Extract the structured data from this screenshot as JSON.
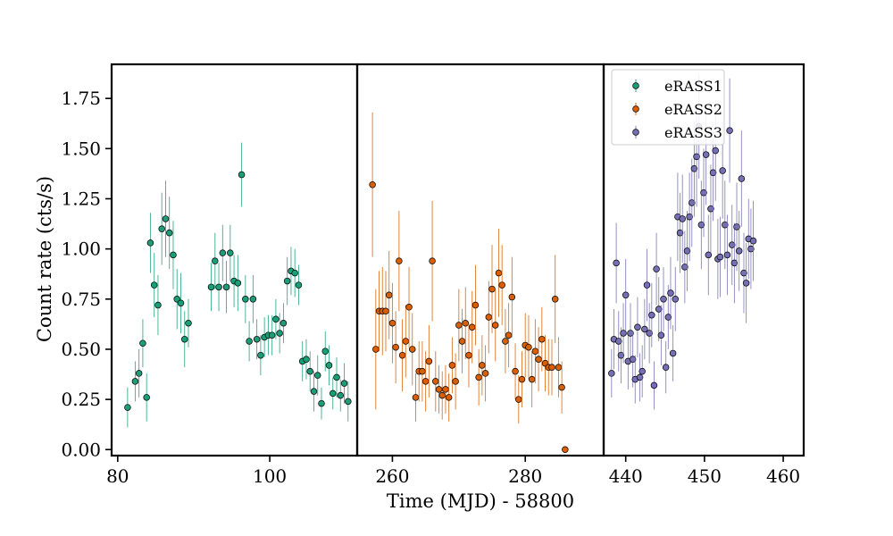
{
  "chart_data": {
    "type": "scatter",
    "xlabel": "Time (MJD) - 58800",
    "ylabel": "Count rate (cts/s)",
    "ylim": [
      -0.03,
      1.92
    ],
    "yticks": [
      0.0,
      0.25,
      0.5,
      0.75,
      1.0,
      1.25,
      1.5,
      1.75
    ],
    "ytick_labels": [
      "0.00",
      "0.25",
      "0.50",
      "0.75",
      "1.00",
      "1.25",
      "1.50",
      "1.75"
    ],
    "legend_position": "top-right of third panel",
    "error_bars": true,
    "panels": [
      {
        "xlim": [
          79.2,
          111.5
        ],
        "xticks": [
          80,
          100
        ],
        "series": [
          {
            "name": "eRASS1",
            "color": "#1b9e77",
            "points": [
              [
                81.3,
                0.21,
                0.1
              ],
              [
                82.3,
                0.34,
                0.1
              ],
              [
                82.8,
                0.38,
                0.12
              ],
              [
                83.3,
                0.53,
                0.12
              ],
              [
                83.8,
                0.26,
                0.12
              ],
              [
                84.3,
                1.03,
                0.15
              ],
              [
                84.8,
                0.82,
                0.16
              ],
              [
                85.3,
                0.72,
                0.15
              ],
              [
                85.8,
                1.1,
                0.18
              ],
              [
                86.3,
                1.15,
                0.19
              ],
              [
                86.8,
                1.08,
                0.18
              ],
              [
                87.3,
                0.97,
                0.17
              ],
              [
                87.8,
                0.75,
                0.15
              ],
              [
                88.3,
                0.73,
                0.15
              ],
              [
                88.8,
                0.55,
                0.14
              ],
              [
                89.3,
                0.63,
                0.12
              ],
              [
                92.3,
                0.81,
                0.12
              ],
              [
                92.8,
                0.94,
                0.14
              ],
              [
                93.3,
                0.81,
                0.12
              ],
              [
                93.8,
                0.98,
                0.14
              ],
              [
                94.3,
                0.81,
                0.13
              ],
              [
                94.8,
                0.98,
                0.14
              ],
              [
                95.3,
                0.84,
                0.13
              ],
              [
                95.8,
                0.83,
                0.14
              ],
              [
                96.3,
                1.37,
                0.16
              ],
              [
                96.8,
                0.75,
                0.12
              ],
              [
                97.3,
                0.54,
                0.1
              ],
              [
                97.8,
                0.75,
                0.12
              ],
              [
                98.3,
                0.55,
                0.1
              ],
              [
                98.8,
                0.47,
                0.1
              ],
              [
                99.3,
                0.56,
                0.1
              ],
              [
                99.8,
                0.57,
                0.1
              ],
              [
                100.3,
                0.57,
                0.1
              ],
              [
                100.8,
                0.65,
                0.1
              ],
              [
                101.3,
                0.58,
                0.1
              ],
              [
                101.8,
                0.63,
                0.1
              ],
              [
                102.3,
                0.84,
                0.12
              ],
              [
                102.8,
                0.89,
                0.12
              ],
              [
                103.3,
                0.88,
                0.12
              ],
              [
                103.8,
                0.82,
                0.1
              ],
              [
                104.3,
                0.44,
                0.1
              ],
              [
                104.8,
                0.45,
                0.1
              ],
              [
                105.3,
                0.39,
                0.1
              ],
              [
                105.8,
                0.29,
                0.1
              ],
              [
                106.3,
                0.37,
                0.1
              ],
              [
                106.8,
                0.23,
                0.08
              ],
              [
                107.3,
                0.49,
                0.1
              ],
              [
                107.8,
                0.42,
                0.1
              ],
              [
                108.3,
                0.28,
                0.08
              ],
              [
                108.8,
                0.36,
                0.1
              ],
              [
                109.3,
                0.27,
                0.08
              ],
              [
                109.8,
                0.33,
                0.1
              ],
              [
                110.3,
                0.24,
                0.1
              ]
            ]
          }
        ]
      },
      {
        "xlim": [
          254.7,
          291.8
        ],
        "xticks": [
          260,
          280
        ],
        "series": [
          {
            "name": "eRASS2",
            "color": "#d95f02",
            "points": [
              [
                257.0,
                1.32,
                0.36
              ],
              [
                257.5,
                0.5,
                0.3
              ],
              [
                258.0,
                0.69,
                0.2
              ],
              [
                258.5,
                0.69,
                0.22
              ],
              [
                259.0,
                0.69,
                0.2
              ],
              [
                259.5,
                0.77,
                0.22
              ],
              [
                260.0,
                0.63,
                0.2
              ],
              [
                260.5,
                0.51,
                0.18
              ],
              [
                261.0,
                0.94,
                0.25
              ],
              [
                261.5,
                0.47,
                0.18
              ],
              [
                262.0,
                0.54,
                0.18
              ],
              [
                262.5,
                0.71,
                0.2
              ],
              [
                263.0,
                0.5,
                0.18
              ],
              [
                263.5,
                0.26,
                0.12
              ],
              [
                264.0,
                0.39,
                0.15
              ],
              [
                264.5,
                0.39,
                0.15
              ],
              [
                265.0,
                0.34,
                0.15
              ],
              [
                265.5,
                0.44,
                0.18
              ],
              [
                266.0,
                0.94,
                0.3
              ],
              [
                266.5,
                0.34,
                0.15
              ],
              [
                267.0,
                0.3,
                0.12
              ],
              [
                267.5,
                0.27,
                0.12
              ],
              [
                268.0,
                0.3,
                0.12
              ],
              [
                268.5,
                0.26,
                0.12
              ],
              [
                269.0,
                0.42,
                0.14
              ],
              [
                269.5,
                0.34,
                0.14
              ],
              [
                270.0,
                0.62,
                0.18
              ],
              [
                270.5,
                0.54,
                0.16
              ],
              [
                271.0,
                0.63,
                0.18
              ],
              [
                271.5,
                0.47,
                0.16
              ],
              [
                272.0,
                0.61,
                0.18
              ],
              [
                272.5,
                0.72,
                0.2
              ],
              [
                273.0,
                0.36,
                0.14
              ],
              [
                273.5,
                0.42,
                0.15
              ],
              [
                274.0,
                0.38,
                0.14
              ],
              [
                274.5,
                0.66,
                0.18
              ],
              [
                275.0,
                0.8,
                0.22
              ],
              [
                275.5,
                0.62,
                0.18
              ],
              [
                276.0,
                0.88,
                0.22
              ],
              [
                276.5,
                0.82,
                0.2
              ],
              [
                277.0,
                0.54,
                0.16
              ],
              [
                277.5,
                0.57,
                0.16
              ],
              [
                278.0,
                0.76,
                0.2
              ],
              [
                278.5,
                0.39,
                0.14
              ],
              [
                279.0,
                0.25,
                0.12
              ],
              [
                279.5,
                0.35,
                0.14
              ],
              [
                280.0,
                0.52,
                0.16
              ],
              [
                280.5,
                0.51,
                0.16
              ],
              [
                281.0,
                0.35,
                0.14
              ],
              [
                281.5,
                0.49,
                0.16
              ],
              [
                282.0,
                0.45,
                0.16
              ],
              [
                282.5,
                0.55,
                0.16
              ],
              [
                283.0,
                0.43,
                0.14
              ],
              [
                283.5,
                0.41,
                0.14
              ],
              [
                284.0,
                0.41,
                0.14
              ],
              [
                284.5,
                0.75,
                0.22
              ],
              [
                285.0,
                0.41,
                0.15
              ],
              [
                285.5,
                0.31,
                0.13
              ],
              [
                286.0,
                0.0,
                0.0
              ]
            ]
          }
        ]
      },
      {
        "xlim": [
          437.2,
          462.6
        ],
        "xticks": [
          440,
          450,
          460
        ],
        "series": [
          {
            "name": "eRASS3",
            "color": "#7570b3",
            "points": [
              [
                438.2,
                0.38,
                0.12
              ],
              [
                438.5,
                0.55,
                0.15
              ],
              [
                438.8,
                0.93,
                0.2
              ],
              [
                439.1,
                0.54,
                0.15
              ],
              [
                439.4,
                0.47,
                0.14
              ],
              [
                439.7,
                0.58,
                0.15
              ],
              [
                440.0,
                0.77,
                0.18
              ],
              [
                440.3,
                0.44,
                0.14
              ],
              [
                440.6,
                0.58,
                0.15
              ],
              [
                440.9,
                0.45,
                0.14
              ],
              [
                441.2,
                0.35,
                0.12
              ],
              [
                441.5,
                0.61,
                0.15
              ],
              [
                441.8,
                0.36,
                0.12
              ],
              [
                442.1,
                0.39,
                0.13
              ],
              [
                442.4,
                0.6,
                0.15
              ],
              [
                442.7,
                0.82,
                0.18
              ],
              [
                443.0,
                0.58,
                0.15
              ],
              [
                443.3,
                0.67,
                0.16
              ],
              [
                443.6,
                0.32,
                0.12
              ],
              [
                443.9,
                0.9,
                0.18
              ],
              [
                444.2,
                0.7,
                0.16
              ],
              [
                444.5,
                0.57,
                0.15
              ],
              [
                444.8,
                0.75,
                0.16
              ],
              [
                445.1,
                0.41,
                0.13
              ],
              [
                445.4,
                0.66,
                0.16
              ],
              [
                445.7,
                0.78,
                0.18
              ],
              [
                446.0,
                0.48,
                0.14
              ],
              [
                446.3,
                0.75,
                0.16
              ],
              [
                446.6,
                1.16,
                0.22
              ],
              [
                446.9,
                1.08,
                0.2
              ],
              [
                447.2,
                1.15,
                0.22
              ],
              [
                447.5,
                0.91,
                0.18
              ],
              [
                447.8,
                0.99,
                0.2
              ],
              [
                448.1,
                1.16,
                0.22
              ],
              [
                448.4,
                1.23,
                0.22
              ],
              [
                448.7,
                1.4,
                0.24
              ],
              [
                449.0,
                1.46,
                0.25
              ],
              [
                449.3,
                1.61,
                0.26
              ],
              [
                449.6,
                1.12,
                0.22
              ],
              [
                449.9,
                1.28,
                0.22
              ],
              [
                450.2,
                1.47,
                0.25
              ],
              [
                450.5,
                0.97,
                0.2
              ],
              [
                450.8,
                1.2,
                0.22
              ],
              [
                451.1,
                1.38,
                0.24
              ],
              [
                451.4,
                1.49,
                0.25
              ],
              [
                451.7,
                0.95,
                0.2
              ],
              [
                452.0,
                0.96,
                0.2
              ],
              [
                452.3,
                1.39,
                0.24
              ],
              [
                452.6,
                1.12,
                0.22
              ],
              [
                452.9,
                0.97,
                0.2
              ],
              [
                453.2,
                1.59,
                0.26
              ],
              [
                453.5,
                1.02,
                0.2
              ],
              [
                453.8,
                0.93,
                0.2
              ],
              [
                454.1,
                1.11,
                0.22
              ],
              [
                454.4,
                0.99,
                0.2
              ],
              [
                454.7,
                1.35,
                0.24
              ],
              [
                455.0,
                0.88,
                0.2
              ],
              [
                455.3,
                0.83,
                0.2
              ],
              [
                455.6,
                1.05,
                0.2
              ],
              [
                455.9,
                1.0,
                0.2
              ],
              [
                456.2,
                1.04,
                0.2
              ]
            ]
          }
        ]
      }
    ]
  }
}
